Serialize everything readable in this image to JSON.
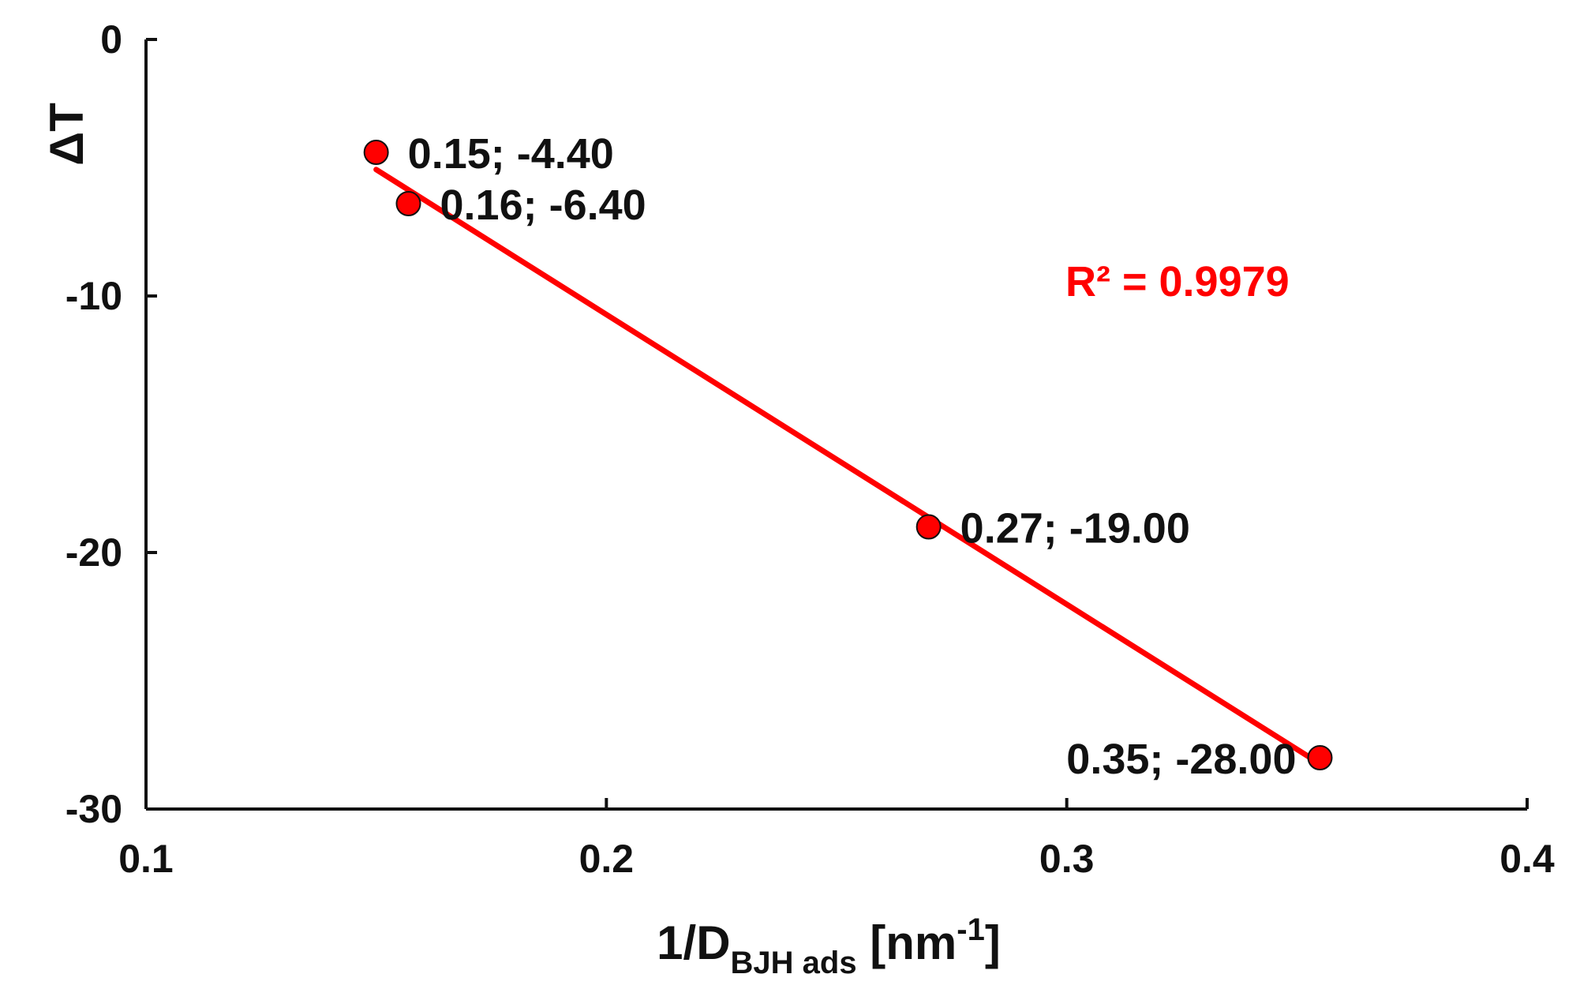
{
  "chart_data": {
    "type": "scatter",
    "xlabel": {
      "prefix": "1/D",
      "subscript": "BJH ads",
      "unit_open": " [nm",
      "unit_sup": "-1",
      "unit_close": "]"
    },
    "ylabel": "ΔT",
    "xlim": [
      0.1,
      0.4
    ],
    "ylim": [
      -30,
      0
    ],
    "xticks": [
      {
        "value": 0.1,
        "label": "0.1"
      },
      {
        "value": 0.2,
        "label": "0.2"
      },
      {
        "value": 0.3,
        "label": "0.3"
      },
      {
        "value": 0.4,
        "label": "0.4"
      }
    ],
    "yticks": [
      {
        "value": 0,
        "label": "0"
      },
      {
        "value": -10,
        "label": "-10"
      },
      {
        "value": -20,
        "label": "-20"
      },
      {
        "value": -30,
        "label": "-30"
      }
    ],
    "grid": false,
    "legend": "none",
    "points": [
      {
        "x": 0.15,
        "y": -4.4,
        "label": "0.15; -4.40",
        "label_side": "right"
      },
      {
        "x": 0.157,
        "y": -6.4,
        "label": "0.16; -6.40",
        "label_side": "right"
      },
      {
        "x": 0.27,
        "y": -19.0,
        "label": "0.27; -19.00",
        "label_side": "right"
      },
      {
        "x": 0.355,
        "y": -28.0,
        "label": "0.35; -28.00",
        "label_side": "left"
      }
    ],
    "trendline": {
      "type": "linear",
      "x_start": 0.15,
      "x_end": 0.355,
      "r2_label": "R² = 0.9979"
    },
    "colors": {
      "marker": "#ff0000",
      "marker_edge": "#111111",
      "trendline": "#ff0000",
      "r2_text": "#ff0000",
      "axis": "#111111"
    }
  }
}
